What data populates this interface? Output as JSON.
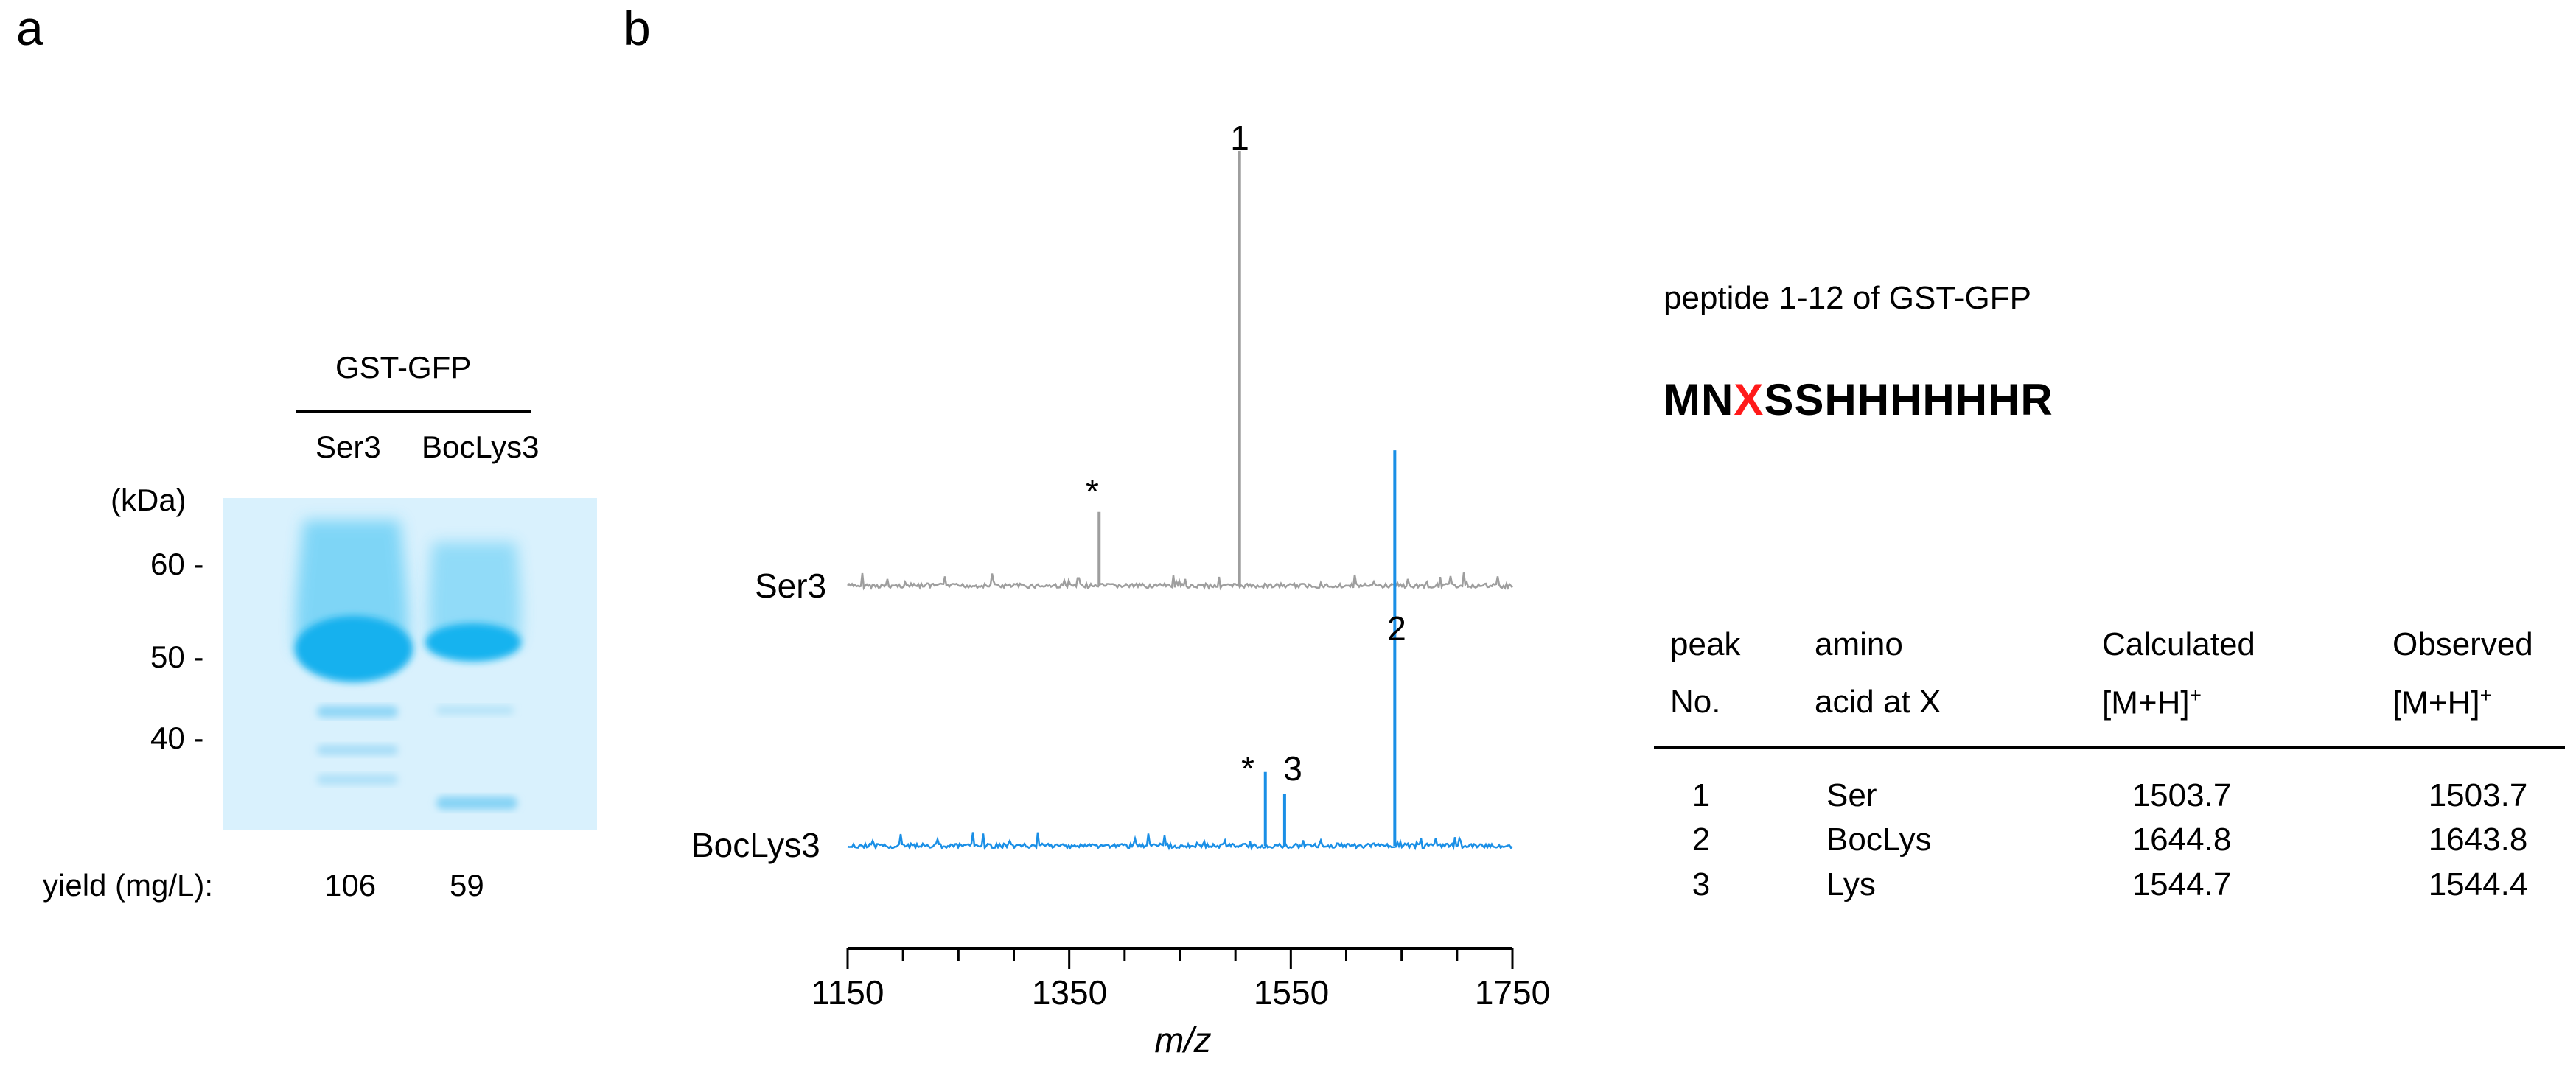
{
  "panels": {
    "a": "a",
    "b": "b"
  },
  "gel": {
    "protein_label": "GST-GFP",
    "lanes": [
      "Ser3",
      "BocLys3"
    ],
    "unit_label": "(kDa)",
    "markers": [
      "60 -",
      "50 -",
      "40 -"
    ],
    "yield_label": "yield (mg/L):",
    "yields": [
      "106",
      "59"
    ],
    "band_color": "#1fb4ee",
    "background_color": "#d9f1fd"
  },
  "spectra": {
    "series": [
      {
        "name": "Ser3",
        "color": "#9e9e9e",
        "peaks": [
          {
            "mz": 1503.7,
            "rel": 1.0,
            "label": "1"
          },
          {
            "mz": 1377,
            "rel": 0.17,
            "label": "*"
          }
        ]
      },
      {
        "name": "BocLys3",
        "color": "#1a8fe6",
        "peaks": [
          {
            "mz": 1643.8,
            "rel": 0.91,
            "label": "2"
          },
          {
            "mz": 1544.4,
            "rel": 0.12,
            "label": "3"
          },
          {
            "mz": 1527,
            "rel": 0.17,
            "label": "*"
          }
        ]
      }
    ],
    "x_ticks": [
      "1150",
      "1350",
      "1550",
      "1750"
    ],
    "xlabel": "m/z",
    "x_range": [
      1150,
      1750
    ]
  },
  "peptide": {
    "caption": "peptide 1-12 of GST-GFP",
    "seq_before": "MN",
    "seq_x": "X",
    "seq_after": "SSHHHHHHR"
  },
  "table": {
    "headers": [
      {
        "line1": "peak",
        "line2": "No.",
        "sup": ""
      },
      {
        "line1": "amino",
        "line2": "acid at X",
        "sup": ""
      },
      {
        "line1": "Calculated",
        "line2": "[M+H]",
        "sup": "+"
      },
      {
        "line1": "Observed",
        "line2": "[M+H]",
        "sup": "+"
      }
    ],
    "rows": [
      [
        "1",
        "Ser",
        "1503.7",
        "1503.7"
      ],
      [
        "2",
        "BocLys",
        "1644.8",
        "1643.8"
      ],
      [
        "3",
        "Lys",
        "1544.7",
        "1544.4"
      ]
    ]
  }
}
